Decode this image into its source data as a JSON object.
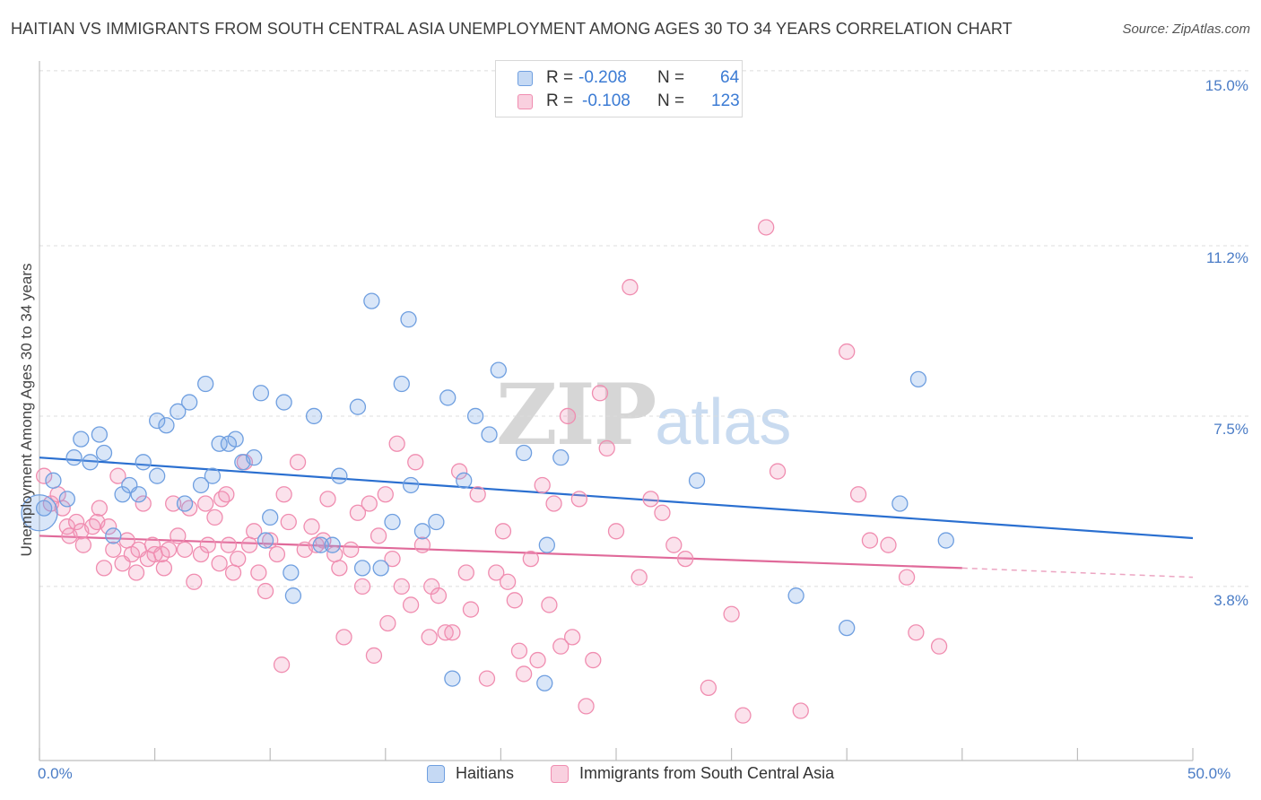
{
  "title": "HAITIAN VS IMMIGRANTS FROM SOUTH CENTRAL ASIA UNEMPLOYMENT AMONG AGES 30 TO 34 YEARS CORRELATION CHART",
  "source": "Source: ZipAtlas.com",
  "watermark": {
    "zip": "ZIP",
    "atlas": "atlas"
  },
  "legend_top": {
    "rows": [
      {
        "r_label": "R =",
        "r_value": "-0.208",
        "n_label": "N =",
        "n_value": "64"
      },
      {
        "r_label": "R =",
        "r_value": "-0.108",
        "n_label": "N =",
        "n_value": "123"
      }
    ]
  },
  "chart_data": {
    "type": "scatter",
    "title": "HAITIAN VS IMMIGRANTS FROM SOUTH CENTRAL ASIA UNEMPLOYMENT AMONG AGES 30 TO 34 YEARS CORRELATION CHART",
    "xlabel": "",
    "ylabel": "Unemployment Among Ages 30 to 34 years",
    "xlim": [
      0,
      50
    ],
    "ylim": [
      0,
      15.4
    ],
    "x_tick_labels": [
      "0.0%",
      "50.0%"
    ],
    "y_ticks": [
      3.8,
      7.5,
      11.2,
      15.0
    ],
    "y_tick_labels": [
      "3.8%",
      "7.5%",
      "11.2%",
      "15.0%"
    ],
    "grid": true,
    "colors": {
      "haitians": "#6f9fe0",
      "immigrants": "#f08db0",
      "haitians_line": "#2a6fd0",
      "immigrants_line": "#e06a9a",
      "tick_text": "#4a7cc6"
    },
    "series": [
      {
        "name": "Haitians",
        "color": "#6f9fe0",
        "trend": {
          "x0": 0,
          "y0": 6.6,
          "x1": 50,
          "y1": 4.85
        },
        "points": [
          [
            0.2,
            5.5
          ],
          [
            0.6,
            6.1
          ],
          [
            1.2,
            5.7
          ],
          [
            1.5,
            6.6
          ],
          [
            1.8,
            7.0
          ],
          [
            2.2,
            6.5
          ],
          [
            2.6,
            7.1
          ],
          [
            2.8,
            6.7
          ],
          [
            3.2,
            4.9
          ],
          [
            3.6,
            5.8
          ],
          [
            3.9,
            6.0
          ],
          [
            4.3,
            5.8
          ],
          [
            4.5,
            6.5
          ],
          [
            5.1,
            7.4
          ],
          [
            5.1,
            6.2
          ],
          [
            5.5,
            7.3
          ],
          [
            6.0,
            7.6
          ],
          [
            6.3,
            5.6
          ],
          [
            6.5,
            7.8
          ],
          [
            7.0,
            6.0
          ],
          [
            7.2,
            8.2
          ],
          [
            7.5,
            6.2
          ],
          [
            7.8,
            6.9
          ],
          [
            8.2,
            6.9
          ],
          [
            8.5,
            7.0
          ],
          [
            8.8,
            6.5
          ],
          [
            9.3,
            6.6
          ],
          [
            9.6,
            8.0
          ],
          [
            9.8,
            4.8
          ],
          [
            10.0,
            5.3
          ],
          [
            10.6,
            7.8
          ],
          [
            10.9,
            4.1
          ],
          [
            11.0,
            3.6
          ],
          [
            11.9,
            7.5
          ],
          [
            12.2,
            4.7
          ],
          [
            12.7,
            4.7
          ],
          [
            13.0,
            6.2
          ],
          [
            13.8,
            7.7
          ],
          [
            14.0,
            4.2
          ],
          [
            14.4,
            10.0
          ],
          [
            14.8,
            4.2
          ],
          [
            15.3,
            5.2
          ],
          [
            15.7,
            8.2
          ],
          [
            16.0,
            9.6
          ],
          [
            16.1,
            6.0
          ],
          [
            16.6,
            5.0
          ],
          [
            17.2,
            5.2
          ],
          [
            17.7,
            7.9
          ],
          [
            17.9,
            1.8
          ],
          [
            18.4,
            6.1
          ],
          [
            18.9,
            7.5
          ],
          [
            19.5,
            7.1
          ],
          [
            19.9,
            8.5
          ],
          [
            21.0,
            6.7
          ],
          [
            21.9,
            1.7
          ],
          [
            22.0,
            4.7
          ],
          [
            22.6,
            6.6
          ],
          [
            28.5,
            6.1
          ],
          [
            32.8,
            3.6
          ],
          [
            35.0,
            2.9
          ],
          [
            37.3,
            5.6
          ],
          [
            38.1,
            8.3
          ],
          [
            39.3,
            4.8
          ],
          [
            0.0,
            5.4
          ]
        ]
      },
      {
        "name": "Immigrants from South Central Asia",
        "color": "#f08db0",
        "trend": {
          "x0": 0,
          "y0": 4.9,
          "x1": 40,
          "y1": 4.2,
          "x_dash_end": 50,
          "y_dash_end": 4.0
        },
        "points": [
          [
            0.2,
            6.2
          ],
          [
            0.5,
            5.6
          ],
          [
            0.8,
            5.8
          ],
          [
            1.0,
            5.5
          ],
          [
            1.2,
            5.1
          ],
          [
            1.3,
            4.9
          ],
          [
            1.6,
            5.2
          ],
          [
            1.8,
            5.0
          ],
          [
            1.9,
            4.7
          ],
          [
            2.3,
            5.1
          ],
          [
            2.5,
            5.2
          ],
          [
            2.6,
            5.5
          ],
          [
            2.8,
            4.2
          ],
          [
            3.0,
            5.1
          ],
          [
            3.2,
            4.6
          ],
          [
            3.4,
            6.2
          ],
          [
            3.6,
            4.3
          ],
          [
            3.8,
            4.8
          ],
          [
            4.0,
            4.5
          ],
          [
            4.2,
            4.1
          ],
          [
            4.3,
            4.6
          ],
          [
            4.5,
            5.6
          ],
          [
            4.7,
            4.4
          ],
          [
            4.9,
            4.7
          ],
          [
            5.0,
            4.5
          ],
          [
            5.3,
            4.5
          ],
          [
            5.4,
            4.2
          ],
          [
            5.6,
            4.6
          ],
          [
            5.8,
            5.6
          ],
          [
            6.0,
            4.9
          ],
          [
            6.3,
            4.6
          ],
          [
            6.5,
            5.5
          ],
          [
            6.7,
            3.9
          ],
          [
            7.0,
            4.5
          ],
          [
            7.2,
            5.6
          ],
          [
            7.3,
            4.7
          ],
          [
            7.6,
            5.3
          ],
          [
            7.8,
            4.3
          ],
          [
            7.9,
            5.7
          ],
          [
            8.1,
            5.8
          ],
          [
            8.2,
            4.7
          ],
          [
            8.4,
            4.1
          ],
          [
            8.6,
            4.4
          ],
          [
            8.9,
            6.5
          ],
          [
            9.1,
            4.7
          ],
          [
            9.3,
            5.0
          ],
          [
            9.5,
            4.1
          ],
          [
            9.8,
            3.7
          ],
          [
            10.0,
            4.8
          ],
          [
            10.3,
            4.5
          ],
          [
            10.5,
            2.1
          ],
          [
            10.6,
            5.8
          ],
          [
            10.8,
            5.2
          ],
          [
            11.2,
            6.5
          ],
          [
            11.5,
            4.6
          ],
          [
            11.8,
            5.1
          ],
          [
            12.0,
            4.7
          ],
          [
            12.3,
            4.8
          ],
          [
            12.5,
            5.7
          ],
          [
            12.8,
            4.5
          ],
          [
            13.0,
            4.2
          ],
          [
            13.2,
            2.7
          ],
          [
            13.5,
            4.6
          ],
          [
            13.8,
            5.4
          ],
          [
            14.0,
            3.8
          ],
          [
            14.3,
            5.6
          ],
          [
            14.5,
            2.3
          ],
          [
            14.7,
            4.9
          ],
          [
            15.0,
            5.8
          ],
          [
            15.1,
            3.0
          ],
          [
            15.3,
            4.4
          ],
          [
            15.5,
            6.9
          ],
          [
            15.7,
            3.8
          ],
          [
            16.1,
            3.4
          ],
          [
            16.3,
            6.5
          ],
          [
            16.6,
            4.7
          ],
          [
            16.9,
            2.7
          ],
          [
            17.0,
            3.8
          ],
          [
            17.3,
            3.6
          ],
          [
            17.6,
            2.8
          ],
          [
            17.9,
            2.8
          ],
          [
            18.2,
            6.3
          ],
          [
            18.5,
            4.1
          ],
          [
            18.7,
            3.3
          ],
          [
            19.0,
            5.8
          ],
          [
            19.4,
            1.8
          ],
          [
            19.8,
            4.1
          ],
          [
            20.1,
            5.0
          ],
          [
            20.3,
            3.9
          ],
          [
            20.6,
            3.5
          ],
          [
            20.8,
            2.4
          ],
          [
            21.0,
            1.9
          ],
          [
            21.3,
            4.4
          ],
          [
            21.6,
            2.2
          ],
          [
            21.8,
            6.0
          ],
          [
            22.1,
            3.4
          ],
          [
            22.3,
            5.6
          ],
          [
            22.6,
            2.5
          ],
          [
            22.9,
            7.5
          ],
          [
            23.1,
            2.7
          ],
          [
            23.4,
            5.7
          ],
          [
            23.7,
            1.2
          ],
          [
            24.0,
            2.2
          ],
          [
            24.3,
            8.0
          ],
          [
            24.6,
            6.8
          ],
          [
            25.0,
            5.0
          ],
          [
            25.6,
            10.3
          ],
          [
            26.0,
            4.0
          ],
          [
            26.5,
            5.7
          ],
          [
            27.0,
            5.4
          ],
          [
            27.5,
            4.7
          ],
          [
            28.0,
            4.4
          ],
          [
            29.0,
            1.6
          ],
          [
            30.0,
            3.2
          ],
          [
            30.5,
            1.0
          ],
          [
            31.5,
            11.6
          ],
          [
            32.0,
            6.3
          ],
          [
            33.0,
            1.1
          ],
          [
            35.0,
            8.9
          ],
          [
            35.5,
            5.8
          ],
          [
            36.0,
            4.8
          ],
          [
            36.8,
            4.7
          ],
          [
            37.6,
            4.0
          ],
          [
            38.0,
            2.8
          ],
          [
            39.0,
            2.5
          ]
        ]
      }
    ]
  },
  "bottom_legend": {
    "items": [
      {
        "label": "Haitians"
      },
      {
        "label": "Immigrants from South Central Asia"
      }
    ]
  }
}
